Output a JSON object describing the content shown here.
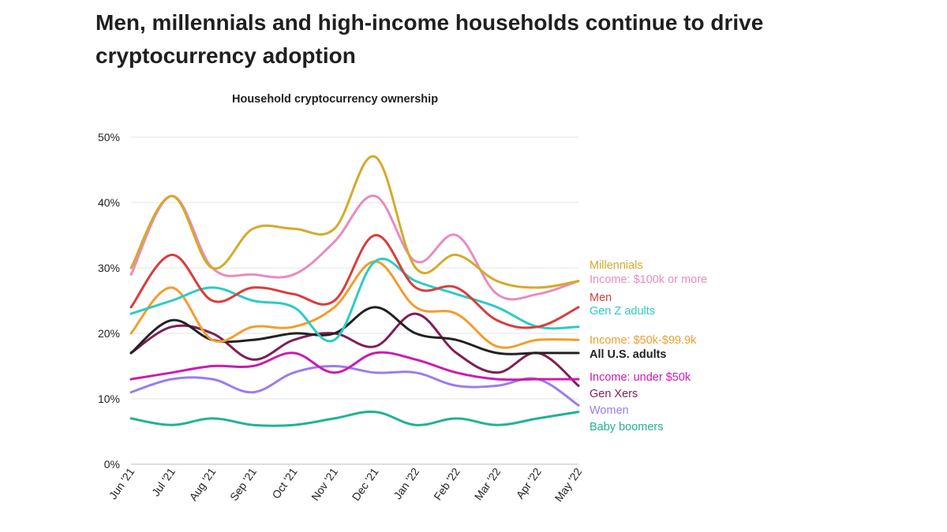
{
  "headline": "Men, millennials and high-income households continue to drive cryptocurrency adoption",
  "chart_data": {
    "type": "line",
    "title": "Household cryptocurrency ownership",
    "x": [
      "Jun '21",
      "Jul '21",
      "Aug '21",
      "Sep '21",
      "Oct '21",
      "Nov '21",
      "Dec '21",
      "Jan '22",
      "Feb '22",
      "Mar '22",
      "Apr '22",
      "May '22"
    ],
    "y_ticks": [
      "0%",
      "10%",
      "20%",
      "30%",
      "40%",
      "50%"
    ],
    "ylim": [
      0,
      50
    ],
    "grid": true,
    "legend": "right, end-of-line labels",
    "series": [
      {
        "name": "Millennials",
        "color": "#d4aa2a",
        "bold": false,
        "values": [
          30,
          41,
          30,
          36,
          36,
          36,
          47,
          30,
          32,
          28,
          27,
          28
        ]
      },
      {
        "name": "Income: $100k or more",
        "color": "#e98bbf",
        "bold": false,
        "values": [
          29,
          41,
          30,
          29,
          29,
          34,
          41,
          31,
          35,
          26,
          26,
          28
        ]
      },
      {
        "name": "Men",
        "color": "#dc3b3b",
        "bold": false,
        "values": [
          24,
          32,
          25,
          27,
          26,
          25,
          35,
          27,
          27,
          22,
          21,
          24
        ]
      },
      {
        "name": "Gen Z adults",
        "color": "#2ccbc4",
        "bold": false,
        "values": [
          23,
          25,
          27,
          25,
          24,
          19,
          31,
          28,
          26,
          24,
          21,
          21
        ]
      },
      {
        "name": "Income: $50k-$99.9k",
        "color": "#f29d2e",
        "bold": false,
        "values": [
          20,
          27,
          19,
          21,
          21,
          24,
          31,
          24,
          23,
          18,
          19,
          19
        ]
      },
      {
        "name": "All U.S. adults",
        "color": "#222222",
        "bold": true,
        "values": [
          17,
          22,
          19,
          19,
          20,
          20,
          24,
          20,
          19,
          17,
          17,
          17
        ]
      },
      {
        "name": "Income: under $50k",
        "color": "#cc1ab0",
        "bold": false,
        "values": [
          13,
          14,
          15,
          15,
          17,
          14,
          17,
          16,
          14,
          13,
          13,
          13
        ]
      },
      {
        "name": "Gen Xers",
        "color": "#7e1f55",
        "bold": false,
        "values": [
          17,
          21,
          20,
          16,
          19,
          20,
          18,
          23,
          17,
          14,
          17,
          12
        ]
      },
      {
        "name": "Women",
        "color": "#9a7cf0",
        "bold": false,
        "values": [
          11,
          13,
          13,
          11,
          14,
          15,
          14,
          14,
          12,
          12,
          13,
          9
        ]
      },
      {
        "name": "Baby boomers",
        "color": "#1fb394",
        "bold": false,
        "values": [
          7,
          6,
          7,
          6,
          6,
          7,
          8,
          6,
          7,
          6,
          7,
          8
        ]
      }
    ]
  }
}
